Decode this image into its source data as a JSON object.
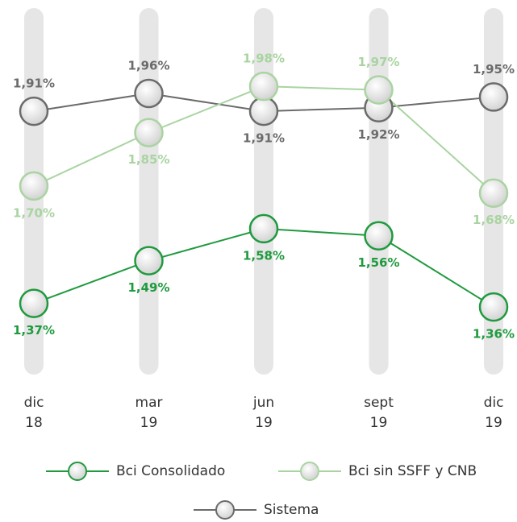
{
  "chart_data": {
    "type": "line",
    "categories": [
      "dic 18",
      "mar 19",
      "jun 19",
      "sept 19",
      "dic 19"
    ],
    "ylim": [
      1.17,
      2.2
    ],
    "series": [
      {
        "name": "Sistema",
        "color": "#6b6b6b",
        "values": [
          1.91,
          1.96,
          1.91,
          1.92,
          1.95
        ],
        "value_labels": [
          "1,91%",
          "1,96%",
          "1,91%",
          "1,92%",
          "1,95%"
        ]
      },
      {
        "name": "Bci sin SSFF y CNB",
        "color": "#a9d4a1",
        "values": [
          1.7,
          1.85,
          1.98,
          1.97,
          1.68
        ],
        "value_labels": [
          "1,70%",
          "1,85%",
          "1,98%",
          "1,97%",
          "1,68%"
        ]
      },
      {
        "name": "Bci Consolidado",
        "color": "#1f9a3e",
        "values": [
          1.37,
          1.49,
          1.58,
          1.56,
          1.36
        ],
        "value_labels": [
          "1,37%",
          "1,49%",
          "1,58%",
          "1,56%",
          "1,36%"
        ]
      }
    ]
  }
}
